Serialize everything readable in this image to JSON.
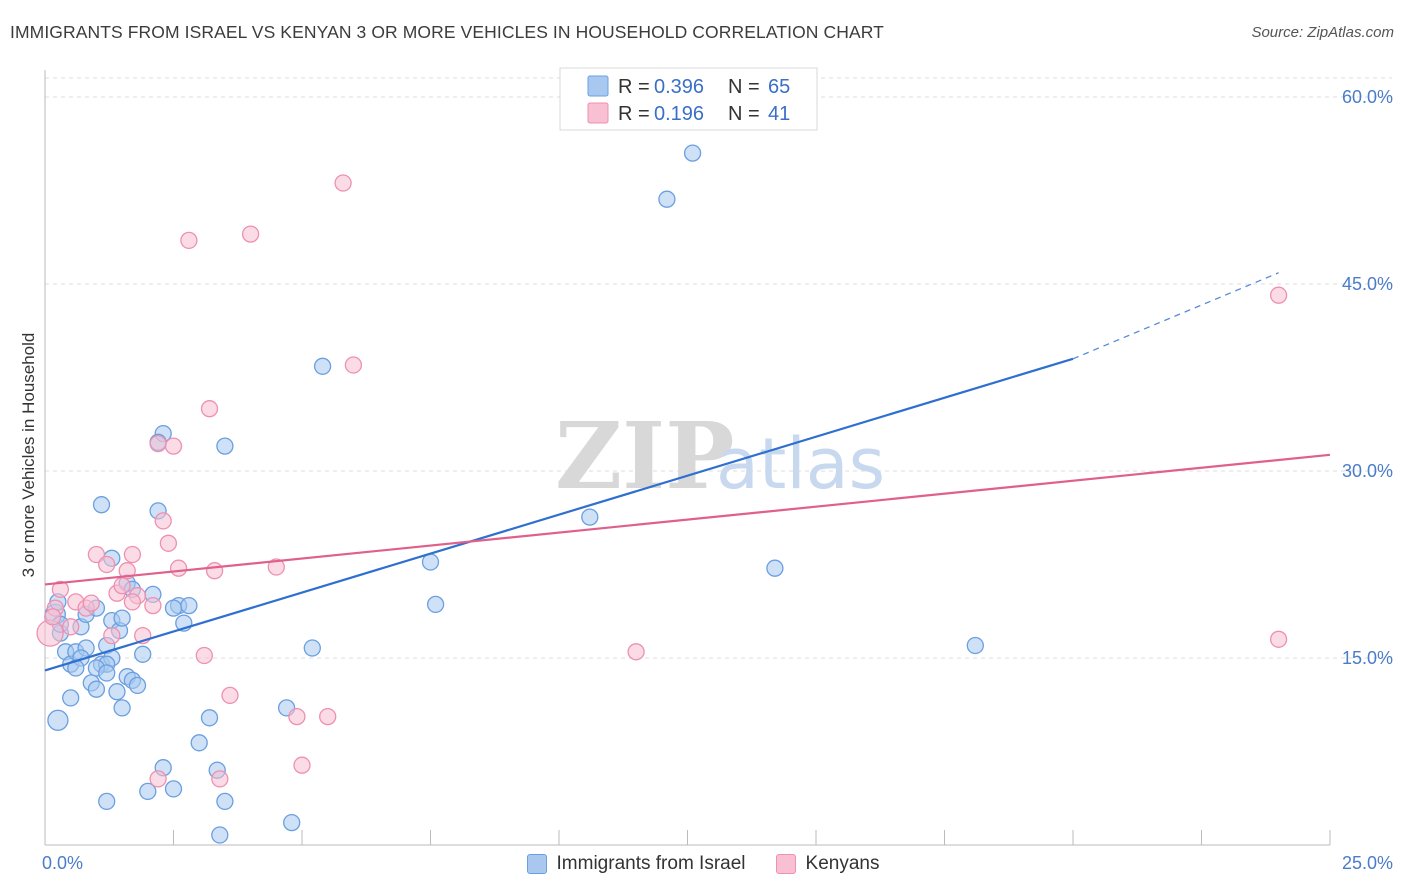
{
  "chart_data": {
    "type": "scatter",
    "title": "IMMIGRANTS FROM ISRAEL VS KENYAN 3 OR MORE VEHICLES IN HOUSEHOLD CORRELATION CHART",
    "source": "Source: ZipAtlas.com",
    "ylabel": "3 or more Vehicles in Household",
    "xlabel": "",
    "xlim": [
      0,
      25
    ],
    "ylim": [
      0,
      60
    ],
    "x_tick_labels": [
      "0.0%",
      "25.0%"
    ],
    "y_ticks": [
      15,
      30,
      45,
      60
    ],
    "y_tick_labels": [
      "15.0%",
      "30.0%",
      "45.0%",
      "60.0%"
    ],
    "grid": true,
    "legend_position": "top-center",
    "watermark": {
      "bold": "ZIP",
      "light": "atlas"
    },
    "series": [
      {
        "name": "Immigrants from Israel",
        "color": "#a8c8f0",
        "stroke": "#6a9fe0",
        "line_color": "#2e6fd0",
        "R": "0.396",
        "N": "65",
        "trendline": {
          "x_start": 0,
          "y_start": 14.0,
          "x_end": 20,
          "y_end": 39.0,
          "dashed_to_x": 24.0,
          "dashed_to_y": 45.9
        },
        "points": [
          [
            0.2,
            18.5
          ],
          [
            0.3,
            17.0
          ],
          [
            0.25,
            19.5
          ],
          [
            0.4,
            15.5
          ],
          [
            0.5,
            14.5
          ],
          [
            0.6,
            15.5
          ],
          [
            0.8,
            15.8
          ],
          [
            0.7,
            17.5
          ],
          [
            0.9,
            13.0
          ],
          [
            1.0,
            12.5
          ],
          [
            1.1,
            14.5
          ],
          [
            1.2,
            16.0
          ],
          [
            1.3,
            15.0
          ],
          [
            1.4,
            12.3
          ],
          [
            1.5,
            11.0
          ],
          [
            1.6,
            13.5
          ],
          [
            1.7,
            13.2
          ],
          [
            1.8,
            12.8
          ],
          [
            1.9,
            15.3
          ],
          [
            0.5,
            11.8
          ],
          [
            0.25,
            10.0
          ],
          [
            1.1,
            27.3
          ],
          [
            1.6,
            21.0
          ],
          [
            2.1,
            20.1
          ],
          [
            2.3,
            33.0
          ],
          [
            2.2,
            32.3
          ],
          [
            2.6,
            19.2
          ],
          [
            2.5,
            19.0
          ],
          [
            2.7,
            17.8
          ],
          [
            2.2,
            26.8
          ],
          [
            1.3,
            18.0
          ],
          [
            1.45,
            17.2
          ],
          [
            1.2,
            14.5
          ],
          [
            3.2,
            10.2
          ],
          [
            3.35,
            6.0
          ],
          [
            3.5,
            3.5
          ],
          [
            2.3,
            6.2
          ],
          [
            2.0,
            4.3
          ],
          [
            2.5,
            4.5
          ],
          [
            3.0,
            8.2
          ],
          [
            3.4,
            0.8
          ],
          [
            4.8,
            1.8
          ],
          [
            4.7,
            11.0
          ],
          [
            5.2,
            15.8
          ],
          [
            5.4,
            38.4
          ],
          [
            1.2,
            3.5
          ],
          [
            3.5,
            32.0
          ],
          [
            1.3,
            23.0
          ],
          [
            7.6,
            19.3
          ],
          [
            7.5,
            22.7
          ],
          [
            10.6,
            26.3
          ],
          [
            12.1,
            51.8
          ],
          [
            12.6,
            55.5
          ],
          [
            14.2,
            22.2
          ],
          [
            18.1,
            16.0
          ],
          [
            0.8,
            18.5
          ],
          [
            1.0,
            19.0
          ],
          [
            1.7,
            20.5
          ],
          [
            0.7,
            15.0
          ],
          [
            1.0,
            14.2
          ],
          [
            1.2,
            13.8
          ],
          [
            1.5,
            18.2
          ],
          [
            2.8,
            19.2
          ],
          [
            0.3,
            17.7
          ],
          [
            0.6,
            14.2
          ]
        ]
      },
      {
        "name": "Kenyans",
        "color": "#f8c0d2",
        "stroke": "#ee90b0",
        "line_color": "#e0608c",
        "R": "0.196",
        "N": "41",
        "trendline": {
          "x_start": 0,
          "y_start": 20.9,
          "x_end": 25,
          "y_end": 31.3
        },
        "points": [
          [
            0.1,
            17.0
          ],
          [
            0.2,
            19.0
          ],
          [
            0.3,
            20.5
          ],
          [
            0.5,
            17.5
          ],
          [
            0.6,
            19.5
          ],
          [
            0.8,
            19.0
          ],
          [
            0.9,
            19.4
          ],
          [
            1.0,
            23.3
          ],
          [
            1.2,
            22.5
          ],
          [
            1.4,
            20.2
          ],
          [
            1.5,
            20.8
          ],
          [
            1.6,
            22.0
          ],
          [
            1.7,
            23.3
          ],
          [
            1.8,
            20.0
          ],
          [
            1.9,
            16.8
          ],
          [
            2.1,
            19.2
          ],
          [
            2.2,
            32.2
          ],
          [
            2.3,
            26.0
          ],
          [
            2.4,
            24.2
          ],
          [
            2.5,
            32.0
          ],
          [
            2.6,
            22.2
          ],
          [
            2.8,
            48.5
          ],
          [
            3.1,
            15.2
          ],
          [
            3.2,
            35.0
          ],
          [
            3.3,
            22.0
          ],
          [
            3.6,
            12.0
          ],
          [
            4.0,
            49.0
          ],
          [
            4.5,
            22.3
          ],
          [
            4.9,
            10.3
          ],
          [
            5.0,
            6.4
          ],
          [
            5.5,
            10.3
          ],
          [
            5.8,
            53.1
          ],
          [
            6.0,
            38.5
          ],
          [
            3.4,
            5.3
          ],
          [
            2.2,
            5.3
          ],
          [
            1.3,
            16.8
          ],
          [
            1.7,
            19.5
          ],
          [
            11.5,
            15.5
          ],
          [
            24.0,
            44.1
          ],
          [
            24.0,
            16.5
          ],
          [
            0.15,
            18.3
          ]
        ]
      }
    ]
  }
}
